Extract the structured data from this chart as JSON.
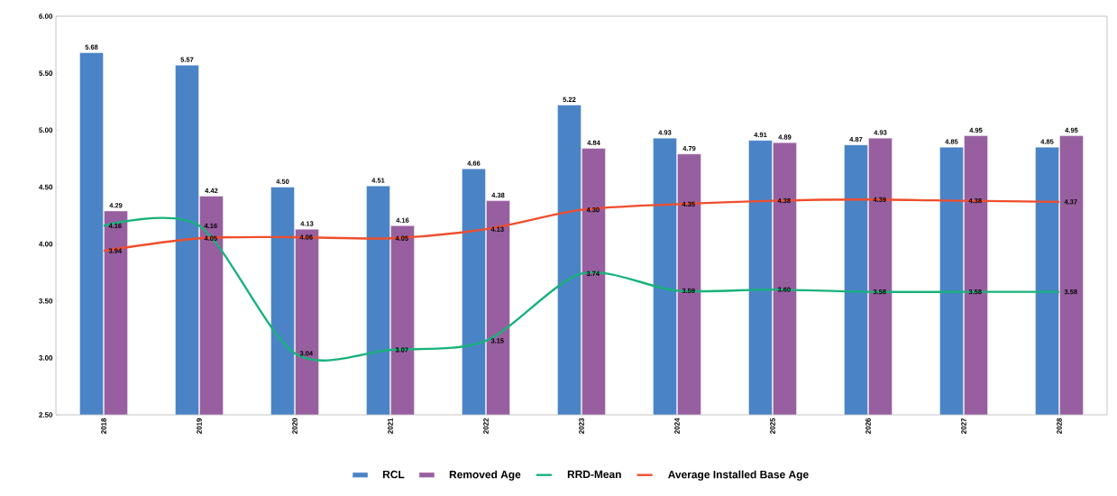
{
  "chart_data": {
    "type": "bar",
    "categories": [
      "2018",
      "2019",
      "2020",
      "2021",
      "2022",
      "2023",
      "2024",
      "2025",
      "2026",
      "2027",
      "2028"
    ],
    "series": [
      {
        "name": "RCL",
        "color": "#4a84c6",
        "values": [
          5.68,
          5.57,
          4.5,
          4.51,
          4.66,
          5.22,
          4.93,
          4.91,
          4.87,
          4.85,
          4.85
        ],
        "value_labels": [
          "5.68",
          "5.57",
          "4.50",
          "4.51",
          "4.66",
          "5.22",
          "4.93",
          "4.91",
          "4.87",
          "4.85",
          "4.85"
        ]
      },
      {
        "name": "Removed Age",
        "color": "#985fa0",
        "values": [
          4.29,
          4.42,
          4.13,
          4.16,
          4.38,
          4.84,
          4.79,
          4.89,
          4.93,
          4.95,
          4.95
        ],
        "value_labels": [
          "4.29",
          "4.42",
          "4.13",
          "4.16",
          "4.38",
          "4.84",
          "4.79",
          "4.89",
          "4.93",
          "4.95",
          "4.95"
        ]
      },
      {
        "name": "RRD-Mean",
        "type": "line",
        "color": "#18b27a",
        "values": [
          4.16,
          4.16,
          3.04,
          3.07,
          3.15,
          3.74,
          3.59,
          3.6,
          3.58,
          3.58,
          3.58
        ],
        "value_labels": [
          "4.16",
          "4.16",
          "3.04",
          "3.07",
          "3.15",
          "3.74",
          "3.59",
          "3.60",
          "3.58",
          "3.58",
          "3.58"
        ]
      },
      {
        "name": "Average Installed Base Age",
        "type": "line",
        "color": "#ef4e2d",
        "values": [
          3.94,
          4.05,
          4.06,
          4.05,
          4.13,
          4.3,
          4.35,
          4.38,
          4.39,
          4.38,
          4.37
        ],
        "value_labels": [
          "3.94",
          "4.05",
          "4.06",
          "4.05",
          "4.13",
          "4.30",
          "4.35",
          "4.38",
          "4.39",
          "4.38",
          "4.37"
        ]
      }
    ],
    "ylim": [
      2.5,
      6.0
    ],
    "yticks": [
      {
        "value": 2.5,
        "label": "2.50"
      },
      {
        "value": 3.0,
        "label": "3.00"
      },
      {
        "value": 3.5,
        "label": "3.50"
      },
      {
        "value": 4.0,
        "label": "4.00"
      },
      {
        "value": 4.5,
        "label": "4.50"
      },
      {
        "value": 5.0,
        "label": "5.00"
      },
      {
        "value": 5.5,
        "label": "5.50"
      },
      {
        "value": 6.0,
        "label": "6.00"
      }
    ],
    "legend": "bottom"
  }
}
